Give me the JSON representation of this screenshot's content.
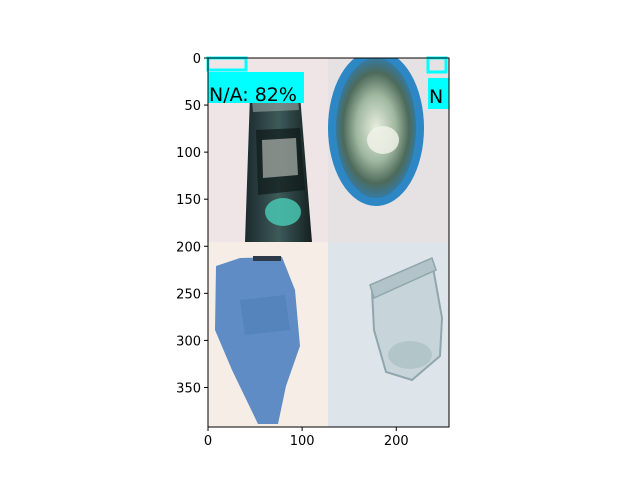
{
  "axes": {
    "x_ticks": [
      0,
      100,
      200
    ],
    "y_ticks": [
      0,
      50,
      100,
      150,
      200,
      250,
      300,
      350
    ],
    "xlim": [
      0,
      256
    ],
    "ylim": [
      392,
      0
    ]
  },
  "image_grid": {
    "cells": [
      {
        "description": "dark glass bottle with label",
        "tone": "#4a5a5e"
      },
      {
        "description": "blue plastic cup viewed from above",
        "tone": "#8fb1a8"
      },
      {
        "description": "crumpled blue paper",
        "tone": "#6b93c2"
      },
      {
        "description": "empty glass jar",
        "tone": "#c9d5da"
      }
    ]
  },
  "detections": [
    {
      "label": "N/A: 82%",
      "color": "#00ffff"
    },
    {
      "label": "N",
      "color": "#00ffff"
    }
  ]
}
